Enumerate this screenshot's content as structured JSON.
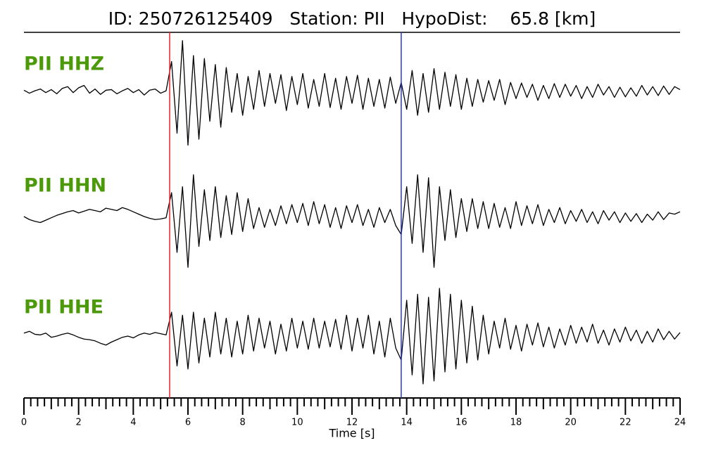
{
  "chart_data": {
    "type": "seismogram",
    "title": "ID: 250726125409   Station: PII   HypoDist:    65.8 [km]",
    "xlabel": "Time [s]",
    "xlim": [
      0,
      24
    ],
    "xticks": [
      0,
      2,
      4,
      6,
      8,
      10,
      12,
      14,
      16,
      18,
      20,
      22,
      24
    ],
    "xminorticks": [
      0.25,
      0.5,
      0.75,
      1,
      1.25,
      1.5,
      1.75,
      2.25,
      2.5,
      2.75,
      3,
      3.25,
      3.5,
      3.75,
      4.25,
      4.5,
      4.75,
      5,
      5.25,
      5.5,
      5.75,
      6.25,
      6.5,
      6.75,
      7,
      7.25,
      7.5,
      7.75,
      8.25,
      8.5,
      8.75,
      9,
      9.25,
      9.5,
      9.75,
      10.25,
      10.5,
      10.75,
      11,
      11.25,
      11.5,
      11.75,
      12.25,
      12.5,
      12.75,
      13,
      13.25,
      13.5,
      13.75,
      14.25,
      14.5,
      14.75,
      15,
      15.25,
      15.5,
      15.75,
      16.25,
      16.5,
      16.75,
      17,
      17.25,
      17.5,
      17.75,
      18.25,
      18.5,
      18.75,
      19,
      19.25,
      19.5,
      19.75,
      20.25,
      20.5,
      20.75,
      21,
      21.25,
      21.5,
      21.75,
      22.25,
      22.5,
      22.75,
      23,
      23.25,
      23.5,
      23.75
    ],
    "ylim": [
      -1,
      1
    ],
    "picks": [
      {
        "x": 5.33,
        "color": "#e8242a"
      },
      {
        "x": 13.8,
        "color": "#2a35d0"
      }
    ],
    "label_color": "#4c9a0a",
    "x": [
      0,
      0.2,
      0.4,
      0.6,
      0.8,
      1,
      1.2,
      1.4,
      1.6,
      1.8,
      2,
      2.2,
      2.4,
      2.6,
      2.8,
      3,
      3.2,
      3.4,
      3.6,
      3.8,
      4,
      4.2,
      4.4,
      4.6,
      4.8,
      5,
      5.2,
      5.4,
      5.6,
      5.8,
      6,
      6.2,
      6.4,
      6.6,
      6.8,
      7,
      7.2,
      7.4,
      7.6,
      7.8,
      8,
      8.2,
      8.4,
      8.6,
      8.8,
      9,
      9.2,
      9.4,
      9.6,
      9.8,
      10,
      10.2,
      10.4,
      10.6,
      10.8,
      11,
      11.2,
      11.4,
      11.6,
      11.8,
      12,
      12.2,
      12.4,
      12.6,
      12.8,
      13,
      13.2,
      13.4,
      13.6,
      13.8,
      14,
      14.2,
      14.4,
      14.6,
      14.8,
      15,
      15.2,
      15.4,
      15.6,
      15.8,
      16,
      16.2,
      16.4,
      16.6,
      16.8,
      17,
      17.2,
      17.4,
      17.6,
      17.8,
      18,
      18.2,
      18.4,
      18.6,
      18.8,
      19,
      19.2,
      19.4,
      19.6,
      19.8,
      20,
      20.2,
      20.4,
      20.6,
      20.8,
      21,
      21.2,
      21.4,
      21.6,
      21.8,
      22,
      22.2,
      22.4,
      22.6,
      22.8,
      23,
      23.2,
      23.4,
      23.6,
      23.8,
      24
    ],
    "series": [
      {
        "name": "PII HHZ",
        "color": "#000000",
        "values": [
          0.02,
          -0.03,
          0.01,
          0.04,
          -0.02,
          0.03,
          -0.04,
          0.05,
          0.08,
          -0.02,
          0.06,
          0.1,
          -0.03,
          0.04,
          -0.05,
          0.02,
          0.03,
          -0.04,
          0.01,
          0.05,
          -0.02,
          0.03,
          -0.06,
          0.02,
          0.04,
          -0.03,
          0.01,
          0.5,
          -0.7,
          0.85,
          -0.9,
          0.6,
          -0.8,
          0.55,
          -0.5,
          0.45,
          -0.6,
          0.4,
          -0.35,
          0.3,
          -0.4,
          0.25,
          -0.3,
          0.35,
          -0.25,
          0.3,
          -0.2,
          0.28,
          -0.32,
          0.25,
          -0.22,
          0.3,
          -0.28,
          0.2,
          -0.25,
          0.3,
          -0.27,
          0.22,
          -0.3,
          0.25,
          -0.2,
          0.27,
          -0.3,
          0.22,
          -0.25,
          0.2,
          -0.28,
          0.24,
          -0.2,
          0.15,
          -0.3,
          0.35,
          -0.4,
          0.3,
          -0.35,
          0.38,
          -0.3,
          0.32,
          -0.25,
          0.28,
          -0.3,
          0.22,
          -0.25,
          0.2,
          -0.18,
          0.18,
          -0.15,
          0.2,
          -0.22,
          0.15,
          -0.12,
          0.14,
          -0.1,
          0.12,
          -0.15,
          0.1,
          -0.12,
          0.13,
          -0.1,
          0.12,
          -0.08,
          0.1,
          -0.12,
          0.08,
          -0.1,
          0.12,
          -0.06,
          0.08,
          -0.1,
          0.07,
          -0.09,
          0.06,
          -0.08,
          0.1,
          -0.06,
          0.08,
          -0.07,
          0.09,
          -0.05,
          0.08,
          0.03
        ]
      },
      {
        "name": "PII HHN",
        "color": "#000000",
        "values": [
          0.0,
          -0.05,
          -0.08,
          -0.1,
          -0.06,
          -0.02,
          0.02,
          0.05,
          0.08,
          0.1,
          0.06,
          0.09,
          0.12,
          0.1,
          0.08,
          0.14,
          0.12,
          0.1,
          0.15,
          0.12,
          0.08,
          0.04,
          0.0,
          -0.03,
          -0.05,
          -0.04,
          -0.02,
          0.4,
          -0.6,
          0.5,
          -0.85,
          0.7,
          -0.5,
          0.45,
          -0.4,
          0.5,
          -0.35,
          0.35,
          -0.3,
          0.4,
          -0.25,
          0.3,
          -0.2,
          0.15,
          -0.18,
          0.12,
          -0.15,
          0.18,
          -0.12,
          0.2,
          -0.1,
          0.22,
          -0.15,
          0.25,
          -0.12,
          0.2,
          -0.18,
          0.15,
          -0.2,
          0.18,
          -0.1,
          0.2,
          -0.15,
          0.12,
          -0.18,
          0.15,
          -0.1,
          0.12,
          -0.15,
          -0.3,
          0.5,
          -0.45,
          0.7,
          -0.6,
          0.65,
          -0.85,
          0.5,
          -0.4,
          0.45,
          -0.35,
          0.3,
          -0.25,
          0.3,
          -0.2,
          0.25,
          -0.2,
          0.22,
          -0.18,
          0.15,
          -0.2,
          0.25,
          -0.15,
          0.18,
          -0.12,
          0.2,
          -0.15,
          0.12,
          -0.1,
          0.15,
          -0.12,
          0.1,
          -0.08,
          0.12,
          -0.1,
          0.08,
          -0.12,
          0.1,
          -0.06,
          0.08,
          -0.1,
          0.06,
          -0.08,
          0.05,
          -0.1,
          0.04,
          -0.06,
          0.08,
          -0.05,
          0.06,
          0.04,
          0.08
        ]
      },
      {
        "name": "PII HHE",
        "color": "#000000",
        "values": [
          0.05,
          0.08,
          0.03,
          0.02,
          0.05,
          -0.02,
          0.0,
          0.03,
          0.05,
          0.02,
          -0.02,
          -0.05,
          -0.06,
          -0.08,
          -0.12,
          -0.15,
          -0.1,
          -0.06,
          -0.02,
          0.0,
          -0.03,
          0.02,
          0.05,
          0.03,
          0.06,
          0.04,
          0.02,
          0.4,
          -0.5,
          0.35,
          -0.55,
          0.4,
          -0.45,
          0.3,
          -0.35,
          0.4,
          -0.3,
          0.3,
          -0.35,
          0.25,
          -0.3,
          0.35,
          -0.25,
          0.3,
          -0.2,
          0.25,
          -0.3,
          0.2,
          -0.25,
          0.3,
          -0.2,
          0.25,
          -0.22,
          0.3,
          -0.2,
          0.25,
          -0.18,
          0.28,
          -0.22,
          0.35,
          -0.25,
          0.3,
          -0.2,
          0.35,
          -0.3,
          0.25,
          -0.35,
          0.3,
          -0.2,
          -0.4,
          0.6,
          -0.65,
          0.7,
          -0.8,
          0.65,
          -0.75,
          0.8,
          -0.6,
          0.7,
          -0.55,
          0.6,
          -0.45,
          0.5,
          -0.4,
          0.35,
          -0.3,
          0.25,
          -0.2,
          0.3,
          -0.22,
          0.18,
          -0.25,
          0.2,
          -0.15,
          0.22,
          -0.18,
          0.15,
          -0.2,
          0.12,
          -0.15,
          0.18,
          -0.12,
          0.15,
          -0.1,
          0.2,
          -0.12,
          0.1,
          -0.15,
          0.12,
          -0.1,
          0.15,
          -0.08,
          0.1,
          -0.12,
          0.08,
          -0.1,
          0.12,
          -0.06,
          0.08,
          -0.05,
          0.06
        ]
      }
    ]
  }
}
